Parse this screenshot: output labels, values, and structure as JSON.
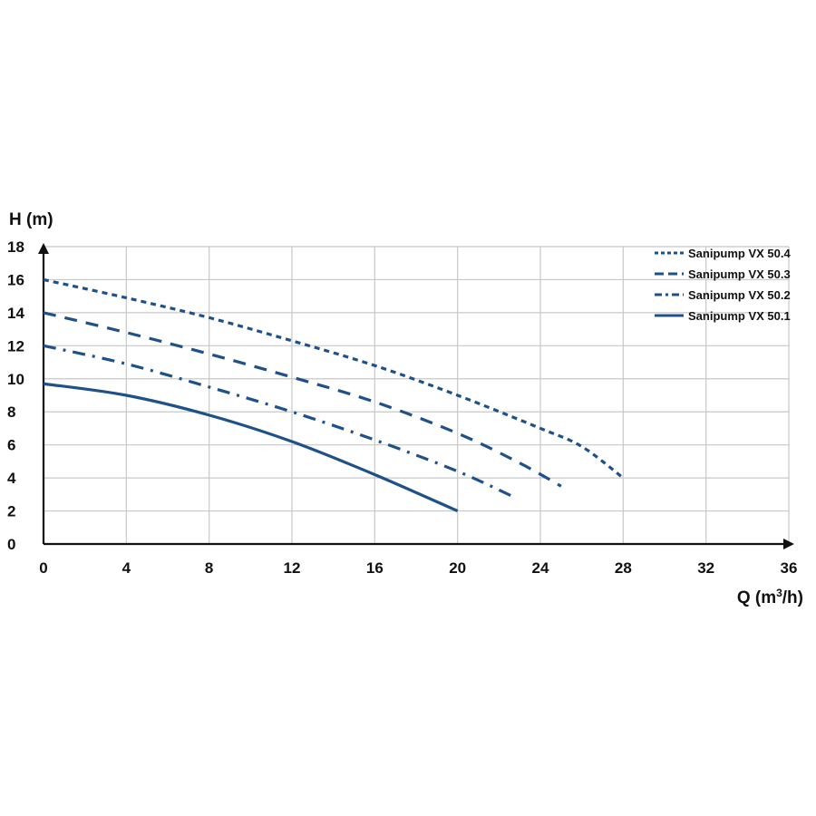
{
  "chart_data": {
    "type": "line",
    "title": "",
    "xlabel_prefix": "Q (m",
    "xlabel_sup": "3",
    "xlabel_suffix": "/h)",
    "ylabel": "H (m)",
    "xlim": [
      0,
      36
    ],
    "ylim": [
      0,
      18
    ],
    "xticks": [
      0,
      4,
      8,
      12,
      16,
      20,
      24,
      28,
      32,
      36
    ],
    "yticks": [
      0,
      2,
      4,
      6,
      8,
      10,
      12,
      14,
      16,
      18
    ],
    "grid": true,
    "legend_position": "top-right",
    "series_color": "#1f5189",
    "series": [
      {
        "name": "Sanipump VX 50.4",
        "dash": "dotted-dash",
        "x": [
          0,
          4,
          8,
          12,
          16,
          20,
          24,
          26,
          28
        ],
        "y": [
          16,
          14.9,
          13.7,
          12.3,
          10.8,
          9.0,
          7.0,
          5.9,
          4.0
        ]
      },
      {
        "name": "Sanipump VX 50.3",
        "dash": "long-dash",
        "x": [
          0,
          4,
          8,
          12,
          16,
          20,
          23,
          25
        ],
        "y": [
          14,
          12.8,
          11.5,
          10.1,
          8.6,
          6.7,
          4.9,
          3.5
        ]
      },
      {
        "name": "Sanipump VX 50.2",
        "dash": "dash-dot",
        "x": [
          0,
          4,
          8,
          12,
          16,
          20,
          22.8
        ],
        "y": [
          12,
          10.9,
          9.5,
          8.0,
          6.3,
          4.4,
          2.8
        ]
      },
      {
        "name": "Sanipump VX 50.1",
        "dash": "solid",
        "x": [
          0,
          4,
          8,
          12,
          16,
          20
        ],
        "y": [
          9.7,
          9.0,
          7.8,
          6.2,
          4.2,
          2.0
        ]
      }
    ]
  }
}
